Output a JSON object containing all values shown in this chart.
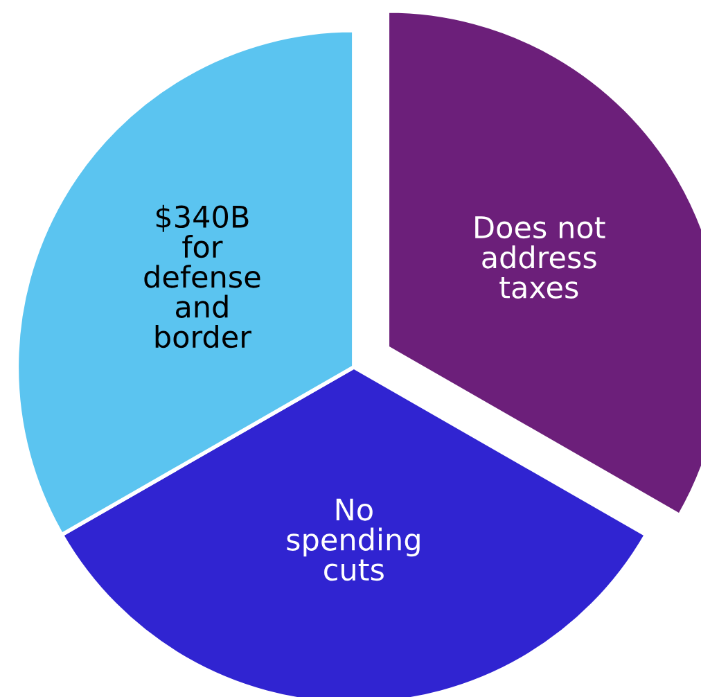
{
  "chart_data": {
    "type": "pie",
    "categories": [
      "Does not address taxes",
      "No spending cuts",
      "$340B for defense and border"
    ],
    "values": [
      33.3,
      33.4,
      33.3
    ],
    "colors": [
      "#6c1f7a",
      "#3024d1",
      "#5bc4f0"
    ]
  }
}
